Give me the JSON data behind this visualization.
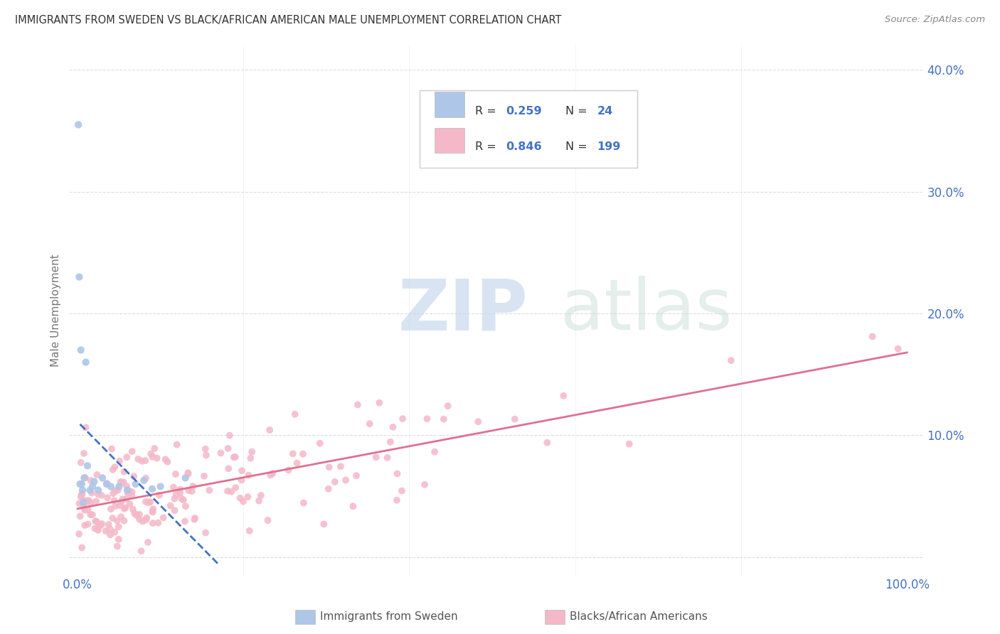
{
  "title": "IMMIGRANTS FROM SWEDEN VS BLACK/AFRICAN AMERICAN MALE UNEMPLOYMENT CORRELATION CHART",
  "source": "Source: ZipAtlas.com",
  "ylabel": "Male Unemployment",
  "xlim": [
    -0.01,
    1.02
  ],
  "ylim": [
    -0.015,
    0.42
  ],
  "bg_color": "#ffffff",
  "grid_color": "#dddddd",
  "title_color": "#333333",
  "axis_label_color": "#777777",
  "tick_color": "#4472c4",
  "scatter_blue_color": "#aec6e8",
  "scatter_pink_color": "#f4b8c8",
  "line_blue_color": "#4472c4",
  "line_pink_color": "#e07090",
  "blue_R": "0.259",
  "blue_N": "24",
  "pink_R": "0.846",
  "pink_N": "199",
  "legend_label_blue": "Immigrants from Sweden",
  "legend_label_pink": "Blacks/African Americans",
  "watermark_zip": "ZIP",
  "watermark_atlas": "atlas",
  "yticks": [
    0.0,
    0.1,
    0.2,
    0.3,
    0.4
  ],
  "ytick_labels": [
    "",
    "10.0%",
    "20.0%",
    "30.0%",
    "40.0%"
  ],
  "xtick_left": "0.0%",
  "xtick_right": "100.0%",
  "blue_x": [
    0.001,
    0.002,
    0.003,
    0.004,
    0.005,
    0.006,
    0.007,
    0.008,
    0.01,
    0.012,
    0.015,
    0.018,
    0.02,
    0.025,
    0.03,
    0.035,
    0.04,
    0.05,
    0.06,
    0.07,
    0.08,
    0.09,
    0.1,
    0.13
  ],
  "blue_y": [
    0.355,
    0.23,
    0.06,
    0.17,
    0.06,
    0.055,
    0.045,
    0.065,
    0.16,
    0.075,
    0.055,
    0.058,
    0.062,
    0.055,
    0.065,
    0.06,
    0.058,
    0.058,
    0.055,
    0.06,
    0.063,
    0.056,
    0.058,
    0.065
  ],
  "pink_seed": 77,
  "pink_n": 199
}
